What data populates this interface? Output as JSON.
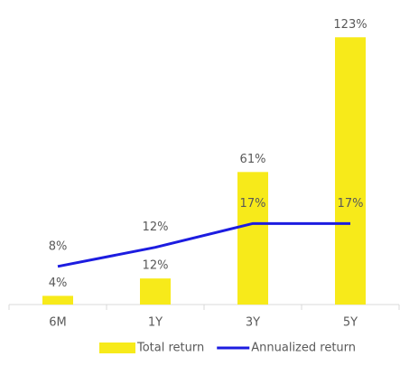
{
  "chart_data": {
    "type": "bar",
    "categories": [
      "6M",
      "1Y",
      "3Y",
      "5Y"
    ],
    "series": [
      {
        "name": "Total return",
        "type": "bar",
        "color": "#f7ea1a",
        "values": [
          4,
          12,
          61,
          123
        ],
        "value_labels": [
          "4%",
          "12%",
          "61%",
          "123%"
        ]
      },
      {
        "name": "Annualized return",
        "type": "line",
        "axis": "y2",
        "color": "#1c1ce0",
        "values": [
          8,
          12,
          17,
          17
        ],
        "value_labels": [
          "8%",
          "12%",
          "17%",
          "17%"
        ]
      }
    ],
    "ylim": [
      0,
      136
    ],
    "y2lim": [
      0,
      62
    ],
    "legend": "bottom"
  }
}
